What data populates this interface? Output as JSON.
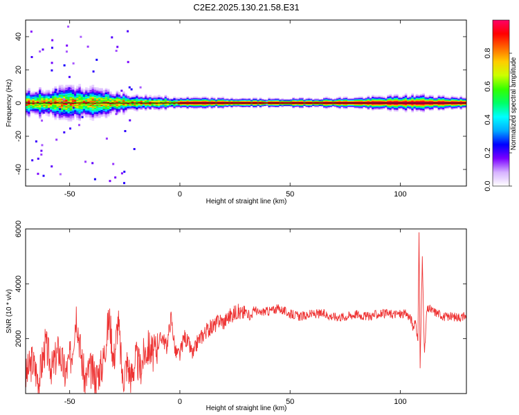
{
  "title": "C2E2.2025.130.21.58.E31",
  "chart_data": [
    {
      "type": "heatmap",
      "xlabel": "Height of straight line (km)",
      "ylabel": "Frequency (Hz)",
      "xlim": [
        -70,
        130
      ],
      "ylim": [
        -50,
        50
      ],
      "x_ticks": [
        -50,
        0,
        50,
        100
      ],
      "y_ticks": [
        -40,
        -20,
        0,
        20,
        40
      ],
      "colorbar": {
        "label": "Normalized spectral amplitude",
        "range": [
          0,
          1
        ],
        "ticks": [
          0.0,
          0.2,
          0.4,
          0.6,
          0.8
        ],
        "colormap": [
          "#ffffff",
          "#d6b2ff",
          "#7a00ff",
          "#0000ff",
          "#00aaff",
          "#00ffff",
          "#00ff66",
          "#33ff00",
          "#ccff00",
          "#ffcc00",
          "#ff6600",
          "#ff0000",
          "#ff0066"
        ]
      },
      "band": {
        "center_hz": 0,
        "core_amplitude": 1.0,
        "halfwidth_hz": [
          {
            "x": -70,
            "hz": 5
          },
          {
            "x": -45,
            "hz": 6
          },
          {
            "x": -20,
            "hz": 3
          },
          {
            "x": 0,
            "hz": 2
          },
          {
            "x": 40,
            "hz": 1.5
          },
          {
            "x": 80,
            "hz": 2
          },
          {
            "x": 108,
            "hz": 3
          },
          {
            "x": 130,
            "hz": 2
          }
        ]
      }
    },
    {
      "type": "line",
      "xlabel": "Height of straight line (km)",
      "ylabel": "SNR (10 * v/v)",
      "xlim": [
        -70,
        130
      ],
      "ylim": [
        0,
        6000
      ],
      "x_ticks": [
        -50,
        0,
        50,
        100
      ],
      "y_ticks": [
        2000,
        4000,
        6000
      ],
      "color": "#ee3333",
      "series": [
        {
          "x": [
            -70,
            -67,
            -64,
            -61,
            -58,
            -55,
            -52,
            -49,
            -47,
            -45,
            -43,
            -41,
            -38,
            -35,
            -32,
            -30,
            -28,
            -26,
            -24,
            -22,
            -20,
            -18,
            -16,
            -14,
            -12,
            -10,
            -8,
            -6,
            -4,
            -2,
            0,
            2,
            4,
            6,
            8,
            10,
            12,
            14,
            16,
            18,
            20,
            22,
            24,
            26,
            28,
            30,
            32,
            34,
            36,
            38,
            40,
            45,
            50,
            55,
            60,
            65,
            70,
            75,
            80,
            85,
            90,
            95,
            100,
            103,
            105,
            106,
            107,
            108,
            108.5,
            109,
            110,
            111,
            112,
            113,
            115,
            118,
            120,
            125,
            130
          ],
          "values": [
            600,
            1200,
            500,
            1800,
            900,
            1600,
            700,
            1500,
            3000,
            1500,
            400,
            900,
            600,
            1100,
            2800,
            1200,
            2700,
            500,
            1100,
            600,
            1300,
            900,
            1500,
            1700,
            1400,
            1800,
            2100,
            1700,
            2800,
            1500,
            1400,
            2100,
            1800,
            1400,
            1900,
            2100,
            2300,
            2400,
            2500,
            2700,
            2600,
            2800,
            2900,
            3000,
            2900,
            3000,
            2800,
            3100,
            2900,
            3000,
            3000,
            3100,
            2900,
            2800,
            2900,
            2900,
            2800,
            2800,
            2900,
            2800,
            2900,
            2900,
            2900,
            2900,
            2700,
            2300,
            2700,
            1800,
            6000,
            1000,
            4900,
            1400,
            3000,
            3100,
            3000,
            2900,
            2800,
            2800,
            2800
          ]
        }
      ]
    }
  ]
}
